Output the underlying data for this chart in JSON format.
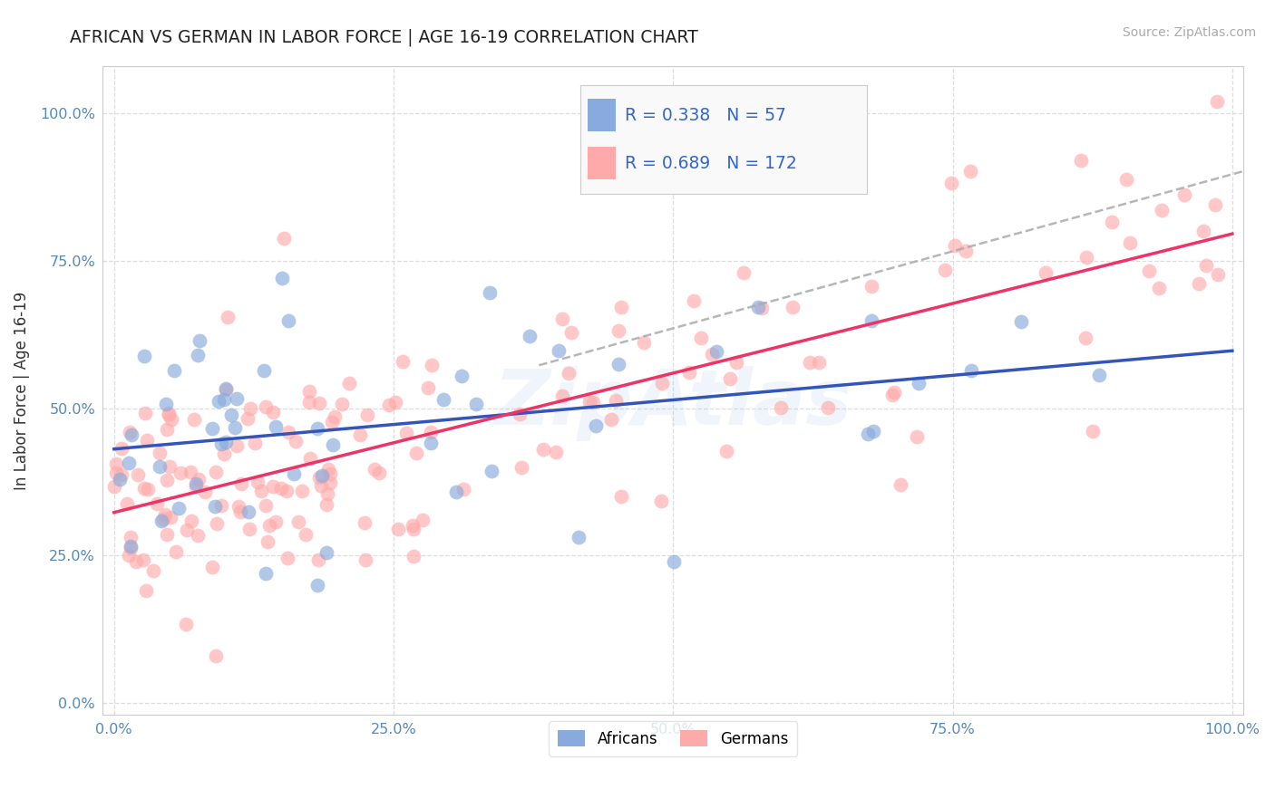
{
  "title": "AFRICAN VS GERMAN IN LABOR FORCE | AGE 16-19 CORRELATION CHART",
  "source": "Source: ZipAtlas.com",
  "ylabel": "In Labor Force | Age 16-19",
  "xlim": [
    -0.01,
    1.01
  ],
  "ylim": [
    -0.02,
    1.08
  ],
  "x_ticks": [
    0.0,
    0.25,
    0.5,
    0.75,
    1.0
  ],
  "y_ticks": [
    0.0,
    0.25,
    0.5,
    0.75,
    1.0
  ],
  "african_color": "#88aadd",
  "german_color": "#ffaaaa",
  "african_R": 0.338,
  "african_N": 57,
  "german_R": 0.689,
  "german_N": 172,
  "trend_color_african": "#3355bb",
  "trend_color_german": "#ee3366",
  "trend_color_dashed": "#aaaaaa",
  "background_color": "#ffffff",
  "grid_color": "#dddddd",
  "title_color": "#222222",
  "tick_color": "#5588bb",
  "legend_text_color": "#3366cc",
  "watermark_color": "#aaccee",
  "watermark_alpha": 0.18,
  "source_color": "#aaaaaa"
}
